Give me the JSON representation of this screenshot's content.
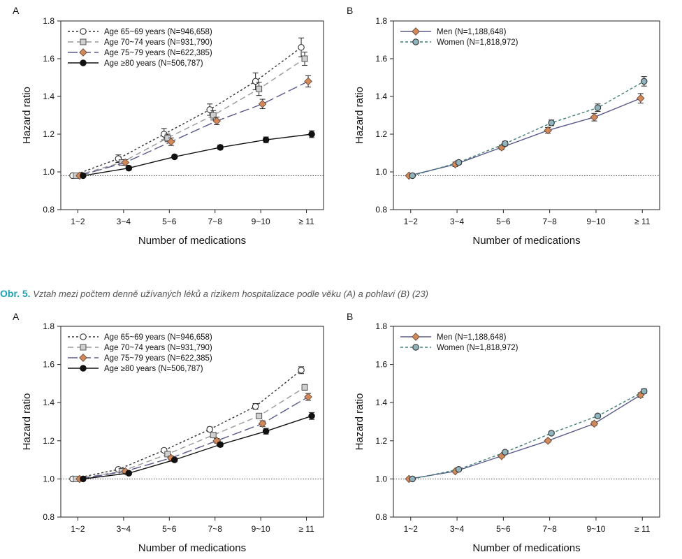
{
  "caption": {
    "lead": "Obr. 5.",
    "text": "Vztah mezi počtem denně užívaných léků a rizikem hospitalizace podle věku (A) a pohlaví (B) (23)"
  },
  "chart_data": [
    {
      "type": "line",
      "panel_label": "A",
      "xlabel": "Number of medications",
      "ylabel": "Hazard ratio",
      "ylim": [
        0.8,
        1.8
      ],
      "yticks": [
        "0.8",
        "1.0",
        "1.2",
        "1.4",
        "1.6",
        "1.8"
      ],
      "reference_line": 0.98,
      "categories": [
        "1~2",
        "3~4",
        "5~6",
        "7~8",
        "9~10",
        "≥ 11"
      ],
      "legend_position": "top-left",
      "series": [
        {
          "name": "Age 65~69 years (N=946,658)",
          "values": [
            0.98,
            1.07,
            1.2,
            1.33,
            1.48,
            1.66
          ],
          "err": [
            0.005,
            0.02,
            0.03,
            0.03,
            0.045,
            0.05
          ],
          "color": "#333333",
          "marker": "circle-open",
          "dash": "3,3",
          "marker_fill": "#ffffff"
        },
        {
          "name": "Age 70~74 years (N=931,790)",
          "values": [
            0.98,
            1.05,
            1.18,
            1.3,
            1.44,
            1.6
          ],
          "err": [
            0.005,
            0.015,
            0.02,
            0.025,
            0.035,
            0.035
          ],
          "color": "#999999",
          "marker": "square",
          "dash": "8,5",
          "marker_fill": "#d0d0d0"
        },
        {
          "name": "Age 75~79 years (N=622,385)",
          "values": [
            0.98,
            1.05,
            1.16,
            1.27,
            1.36,
            1.48
          ],
          "err": [
            0.005,
            0.015,
            0.02,
            0.02,
            0.025,
            0.03
          ],
          "color": "#5a5a8c",
          "marker": "diamond",
          "dash": "14,5",
          "marker_fill": "#d2895a"
        },
        {
          "name": "Age ≥80 years (N=506,787)",
          "values": [
            0.98,
            1.02,
            1.08,
            1.13,
            1.17,
            1.2
          ],
          "err": [
            0.005,
            0.01,
            0.01,
            0.012,
            0.015,
            0.018
          ],
          "color": "#111111",
          "marker": "circle-filled",
          "dash": "",
          "marker_fill": "#111111"
        }
      ]
    },
    {
      "type": "line",
      "panel_label": "B",
      "xlabel": "Number of medications",
      "ylabel": "Hazard ratio",
      "ylim": [
        0.8,
        1.8
      ],
      "yticks": [
        "0.8",
        "1.0",
        "1.2",
        "1.4",
        "1.6",
        "1.8"
      ],
      "reference_line": 0.98,
      "categories": [
        "1~2",
        "3~4",
        "5~6",
        "7~8",
        "9~10",
        "≥ 11"
      ],
      "legend_position": "top-left",
      "series": [
        {
          "name": "Men (N=1,188,648)",
          "values": [
            0.98,
            1.04,
            1.13,
            1.22,
            1.29,
            1.39
          ],
          "err": [
            0.005,
            0.012,
            0.012,
            0.015,
            0.02,
            0.025
          ],
          "color": "#5a5a8c",
          "marker": "diamond",
          "dash": "",
          "marker_fill": "#d2895a"
        },
        {
          "name": "Women (N=1,818,972)",
          "values": [
            0.98,
            1.05,
            1.15,
            1.26,
            1.34,
            1.48
          ],
          "err": [
            0.005,
            0.01,
            0.012,
            0.015,
            0.02,
            0.025
          ],
          "color": "#3f7f77",
          "marker": "circle-filled",
          "dash": "4,3",
          "marker_fill": "#8fb4bd"
        }
      ]
    },
    {
      "type": "line",
      "panel_label": "A",
      "xlabel": "Number of medications",
      "ylabel": "Hazard ratio",
      "ylim": [
        0.8,
        1.8
      ],
      "yticks": [
        "0.8",
        "1.0",
        "1.2",
        "1.4",
        "1.6",
        "1.8"
      ],
      "reference_line": 1.0,
      "categories": [
        "1~2",
        "3~4",
        "5~6",
        "7~8",
        "9~10",
        "≥ 11"
      ],
      "legend_position": "top-left",
      "series": [
        {
          "name": "Age 65~69 years (N=946,658)",
          "values": [
            1.0,
            1.05,
            1.15,
            1.26,
            1.38,
            1.57
          ],
          "err": [
            0.004,
            0.008,
            0.01,
            0.012,
            0.015,
            0.018
          ],
          "color": "#333333",
          "marker": "circle-open",
          "dash": "3,3",
          "marker_fill": "#ffffff"
        },
        {
          "name": "Age 70~74 years (N=931,790)",
          "values": [
            1.0,
            1.04,
            1.13,
            1.23,
            1.33,
            1.48
          ],
          "err": [
            0.004,
            0.008,
            0.01,
            0.012,
            0.012,
            0.015
          ],
          "color": "#999999",
          "marker": "square",
          "dash": "8,5",
          "marker_fill": "#d0d0d0"
        },
        {
          "name": "Age 75~79 years (N=622,385)",
          "values": [
            1.0,
            1.04,
            1.11,
            1.2,
            1.29,
            1.43
          ],
          "err": [
            0.004,
            0.008,
            0.01,
            0.012,
            0.015,
            0.018
          ],
          "color": "#5a5a8c",
          "marker": "diamond",
          "dash": "14,5",
          "marker_fill": "#d2895a"
        },
        {
          "name": "Age ≥80 years (N=506,787)",
          "values": [
            1.0,
            1.03,
            1.1,
            1.18,
            1.25,
            1.33
          ],
          "err": [
            0.004,
            0.008,
            0.01,
            0.012,
            0.015,
            0.018
          ],
          "color": "#111111",
          "marker": "circle-filled",
          "dash": "",
          "marker_fill": "#111111"
        }
      ]
    },
    {
      "type": "line",
      "panel_label": "B",
      "xlabel": "Number of medications",
      "ylabel": "Hazard ratio",
      "ylim": [
        0.8,
        1.8
      ],
      "yticks": [
        "0.8",
        "1.0",
        "1.2",
        "1.4",
        "1.6",
        "1.8"
      ],
      "reference_line": 1.0,
      "categories": [
        "1~2",
        "3~4",
        "5~6",
        "7~8",
        "9~10",
        "≥ 11"
      ],
      "legend_position": "top-left",
      "series": [
        {
          "name": "Men (N=1,188,648)",
          "values": [
            1.0,
            1.04,
            1.12,
            1.2,
            1.29,
            1.44
          ],
          "err": [
            0.004,
            0.006,
            0.008,
            0.008,
            0.01,
            0.012
          ],
          "color": "#5a5a8c",
          "marker": "diamond",
          "dash": "",
          "marker_fill": "#d2895a"
        },
        {
          "name": "Women (N=1,818,972)",
          "values": [
            1.0,
            1.05,
            1.14,
            1.24,
            1.33,
            1.46
          ],
          "err": [
            0.004,
            0.006,
            0.008,
            0.008,
            0.01,
            0.012
          ],
          "color": "#3f7f77",
          "marker": "circle-filled",
          "dash": "4,3",
          "marker_fill": "#8fb4bd"
        }
      ]
    }
  ]
}
